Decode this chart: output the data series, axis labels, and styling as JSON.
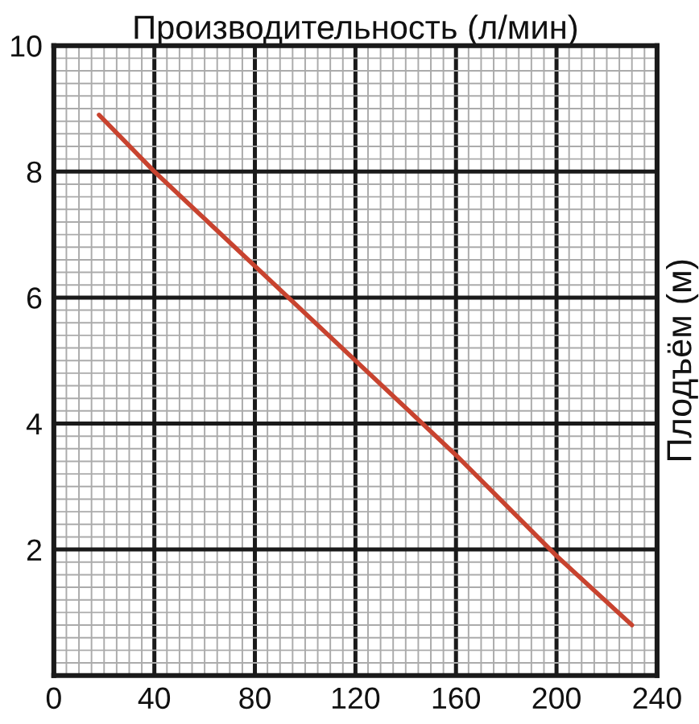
{
  "chart_data": {
    "type": "line",
    "xlabel": "Производительность (л/мин)",
    "ylabel": "Плодъём (м)",
    "x": [
      18,
      40,
      80,
      120,
      160,
      200,
      230
    ],
    "series": [
      {
        "color": "#c8432f",
        "values": [
          8.9,
          8.0,
          6.5,
          5.0,
          3.5,
          1.9,
          0.8
        ]
      }
    ],
    "xlim": [
      0,
      240
    ],
    "ylim": [
      0,
      10
    ],
    "xticks": [
      0,
      {
        "value": 5,
        "label": null
      },
      {
        "value": 10,
        "label": null
      },
      {
        "value": 15,
        "label": null
      },
      {
        "value": 20,
        "label": null
      },
      {
        "value": 25,
        "label": null
      },
      {
        "value": 30,
        "label": null
      },
      {
        "value": 35,
        "label": null
      },
      40,
      {
        "value": 45,
        "label": null
      },
      {
        "value": 50,
        "label": null
      },
      {
        "value": 55,
        "label": null
      },
      {
        "value": 60,
        "label": null
      },
      {
        "value": 65,
        "label": null
      },
      {
        "value": 70,
        "label": null
      },
      {
        "value": 75,
        "label": null
      },
      80,
      {
        "value": 85,
        "label": null
      },
      {
        "value": 90,
        "label": null
      },
      {
        "value": 95,
        "label": null
      },
      {
        "value": 100,
        "label": null
      },
      {
        "value": 105,
        "label": null
      },
      {
        "value": 110,
        "label": null
      },
      {
        "value": 115,
        "label": null
      },
      120,
      {
        "value": 125,
        "label": null
      },
      {
        "value": 130,
        "label": null
      },
      {
        "value": 135,
        "label": null
      },
      {
        "value": 140,
        "label": null
      },
      {
        "value": 145,
        "label": null
      },
      {
        "value": 150,
        "label": null
      },
      {
        "value": 155,
        "label": null
      },
      160,
      {
        "value": 165,
        "label": null
      },
      {
        "value": 170,
        "label": null
      },
      {
        "value": 175,
        "label": null
      },
      {
        "value": 180,
        "label": null
      },
      {
        "value": 185,
        "label": null
      },
      {
        "value": 190,
        "label": null
      },
      {
        "value": 195,
        "label": null
      },
      200,
      {
        "value": 205,
        "label": null
      },
      {
        "value": 210,
        "label": null
      },
      {
        "value": 215,
        "label": null
      },
      {
        "value": 220,
        "label": null
      },
      {
        "value": 225,
        "label": null
      },
      {
        "value": 230,
        "label": null
      },
      {
        "value": 235,
        "label": null
      },
      240
    ],
    "yticks": [
      {
        "value": 0,
        "label": null
      },
      {
        "value": 0.2,
        "label": null
      },
      {
        "value": 0.4,
        "label": null
      },
      {
        "value": 0.6,
        "label": null
      },
      {
        "value": 0.8,
        "label": null
      },
      {
        "value": 1,
        "label": null
      },
      {
        "value": 1.2,
        "label": null
      },
      {
        "value": 1.4,
        "label": null
      },
      {
        "value": 1.6,
        "label": null
      },
      {
        "value": 1.8,
        "label": null
      },
      2,
      {
        "value": 2.2,
        "label": null
      },
      {
        "value": 2.4,
        "label": null
      },
      {
        "value": 2.6,
        "label": null
      },
      {
        "value": 2.8,
        "label": null
      },
      {
        "value": 3,
        "label": null
      },
      {
        "value": 3.2,
        "label": null
      },
      {
        "value": 3.4,
        "label": null
      },
      {
        "value": 3.6,
        "label": null
      },
      {
        "value": 3.8,
        "label": null
      },
      4,
      {
        "value": 4.2,
        "label": null
      },
      {
        "value": 4.4,
        "label": null
      },
      {
        "value": 4.6,
        "label": null
      },
      {
        "value": 4.8,
        "label": null
      },
      {
        "value": 5,
        "label": null
      },
      {
        "value": 5.2,
        "label": null
      },
      {
        "value": 5.4,
        "label": null
      },
      {
        "value": 5.6,
        "label": null
      },
      {
        "value": 5.8,
        "label": null
      },
      6,
      {
        "value": 6.2,
        "label": null
      },
      {
        "value": 6.4,
        "label": null
      },
      {
        "value": 6.6,
        "label": null
      },
      {
        "value": 6.8,
        "label": null
      },
      {
        "value": 7,
        "label": null
      },
      {
        "value": 7.2,
        "label": null
      },
      {
        "value": 7.4,
        "label": null
      },
      {
        "value": 7.6,
        "label": null
      },
      {
        "value": 7.8,
        "label": null
      },
      8,
      {
        "value": 8.2,
        "label": null
      },
      {
        "value": 8.4,
        "label": null
      },
      {
        "value": 8.6,
        "label": null
      },
      {
        "value": 8.8,
        "label": null
      },
      {
        "value": 9,
        "label": null
      },
      {
        "value": 9.2,
        "label": null
      },
      {
        "value": 9.4,
        "label": null
      },
      {
        "value": 9.6,
        "label": null
      },
      {
        "value": 9.8,
        "label": null
      },
      10
    ],
    "grid": true
  }
}
